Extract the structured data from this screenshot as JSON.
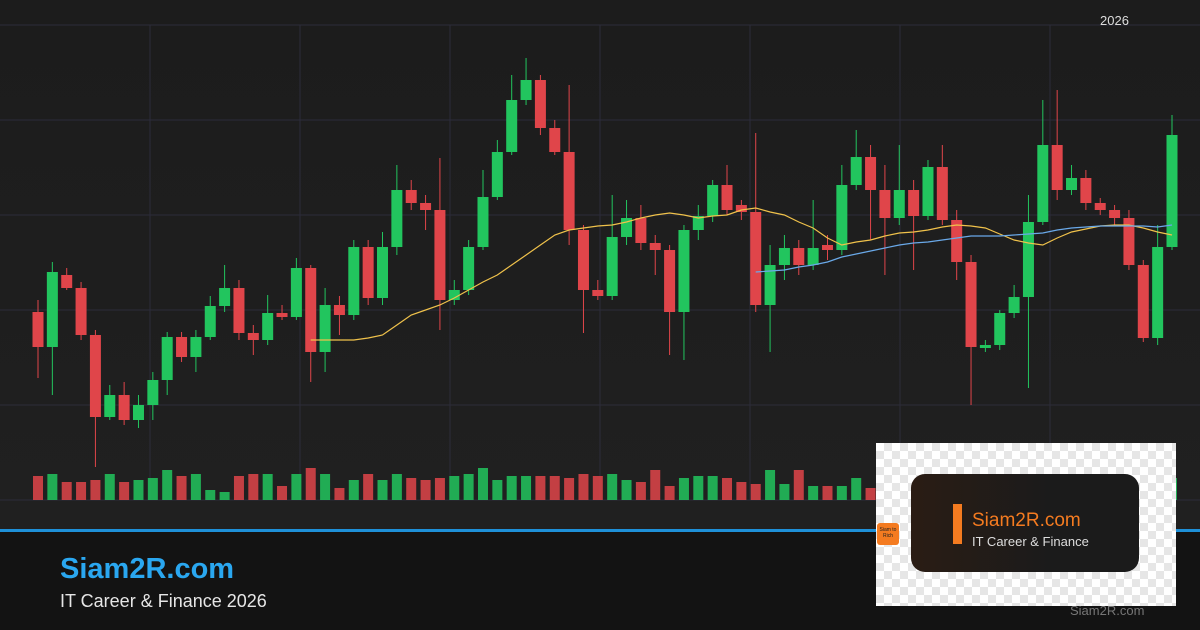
{
  "header": {
    "year": "2026"
  },
  "chart_data": {
    "type": "candlestick",
    "ylim": [
      0,
      500
    ],
    "up_color": "#22c55e",
    "down_color": "#e0454a",
    "open": [
      188,
      153,
      225,
      212,
      165,
      83,
      105,
      80,
      95,
      120,
      163,
      143,
      163,
      194,
      212,
      167,
      160,
      187,
      183,
      232,
      148,
      195,
      185,
      253,
      202,
      253,
      310,
      297,
      290,
      200,
      210,
      253,
      303,
      348,
      400,
      420,
      372,
      348,
      270,
      210,
      204,
      263,
      282,
      257,
      250,
      188,
      270,
      284,
      315,
      295,
      288,
      195,
      235,
      252,
      235,
      255,
      250,
      315,
      343,
      310,
      282,
      310,
      284,
      333,
      280,
      238,
      152,
      155,
      187,
      203,
      278,
      355,
      310,
      322,
      297,
      290,
      282,
      235,
      162,
      253
    ],
    "high": [
      200,
      238,
      232,
      218,
      170,
      115,
      118,
      105,
      128,
      168,
      168,
      170,
      204,
      235,
      220,
      175,
      205,
      195,
      242,
      235,
      212,
      204,
      260,
      260,
      268,
      335,
      320,
      305,
      342,
      220,
      260,
      330,
      360,
      425,
      442,
      425,
      380,
      415,
      275,
      220,
      305,
      300,
      295,
      265,
      255,
      275,
      295,
      320,
      335,
      300,
      367,
      255,
      265,
      260,
      300,
      265,
      335,
      370,
      355,
      335,
      355,
      320,
      340,
      355,
      290,
      245,
      160,
      190,
      215,
      305,
      400,
      410,
      335,
      330,
      302,
      295,
      290,
      240,
      275,
      385
    ],
    "low": [
      122,
      105,
      210,
      160,
      33,
      80,
      75,
      72,
      80,
      105,
      138,
      128,
      160,
      188,
      160,
      145,
      155,
      180,
      180,
      118,
      128,
      165,
      180,
      195,
      195,
      245,
      290,
      270,
      170,
      195,
      205,
      250,
      300,
      345,
      395,
      365,
      345,
      255,
      167,
      200,
      200,
      255,
      250,
      225,
      145,
      140,
      260,
      278,
      285,
      280,
      188,
      148,
      220,
      225,
      230,
      240,
      245,
      310,
      260,
      225,
      275,
      230,
      280,
      275,
      220,
      95,
      148,
      150,
      182,
      112,
      275,
      300,
      305,
      290,
      285,
      275,
      230,
      158,
      155,
      250
    ],
    "close": [
      153,
      228,
      212,
      165,
      83,
      105,
      80,
      95,
      120,
      163,
      143,
      163,
      194,
      212,
      167,
      160,
      187,
      183,
      232,
      148,
      195,
      185,
      253,
      202,
      253,
      310,
      297,
      290,
      200,
      210,
      253,
      303,
      348,
      400,
      420,
      372,
      348,
      270,
      210,
      204,
      263,
      282,
      257,
      250,
      188,
      270,
      284,
      315,
      290,
      288,
      195,
      235,
      252,
      235,
      252,
      250,
      315,
      343,
      310,
      282,
      310,
      284,
      333,
      280,
      238,
      153,
      155,
      187,
      203,
      278,
      355,
      310,
      322,
      297,
      290,
      282,
      235,
      162,
      253,
      365
    ],
    "volume": [
      24,
      26,
      18,
      18,
      20,
      26,
      18,
      20,
      22,
      30,
      24,
      26,
      10,
      8,
      24,
      26,
      26,
      14,
      26,
      32,
      26,
      12,
      20,
      26,
      20,
      26,
      22,
      20,
      22,
      24,
      26,
      32,
      20,
      24,
      24,
      24,
      24,
      22,
      26,
      24,
      26,
      20,
      18,
      30,
      14,
      22,
      24,
      24,
      22,
      18,
      16,
      30,
      16,
      30,
      14,
      14,
      14,
      22,
      12,
      24,
      20,
      22,
      20,
      18,
      22,
      20,
      24,
      18,
      20,
      22,
      24,
      20,
      22,
      18,
      20,
      22,
      20,
      24,
      18,
      22
    ],
    "volume_lim": [
      0,
      100
    ],
    "series": [
      {
        "color": "#f0c24b",
        "values": [
          null,
          null,
          null,
          null,
          null,
          null,
          null,
          null,
          null,
          null,
          null,
          null,
          null,
          null,
          null,
          null,
          null,
          null,
          null,
          160,
          160,
          160,
          160,
          162,
          165,
          175,
          185,
          190,
          195,
          202,
          210,
          218,
          225,
          235,
          245,
          255,
          265,
          270,
          272,
          274,
          275,
          278,
          282,
          285,
          287,
          285,
          282,
          284,
          285,
          290,
          292,
          288,
          285,
          278,
          272,
          262,
          255,
          258,
          260,
          264,
          267,
          268,
          270,
          273,
          275,
          274,
          272,
          266,
          260,
          257,
          255,
          262,
          268,
          271,
          274,
          275,
          275,
          272,
          268,
          265
        ]
      },
      {
        "color": "#6aa9e9",
        "values": [
          null,
          null,
          null,
          null,
          null,
          null,
          null,
          null,
          null,
          null,
          null,
          null,
          null,
          null,
          null,
          null,
          null,
          null,
          null,
          null,
          null,
          null,
          null,
          null,
          null,
          null,
          null,
          null,
          null,
          null,
          null,
          null,
          null,
          null,
          null,
          null,
          null,
          null,
          null,
          null,
          null,
          null,
          null,
          null,
          null,
          null,
          null,
          null,
          null,
          null,
          228,
          229,
          230,
          233,
          235,
          238,
          243,
          246,
          249,
          252,
          255,
          257,
          258,
          260,
          262,
          264,
          264,
          264,
          265,
          266,
          267,
          270,
          272,
          273,
          274,
          274,
          274,
          274,
          273,
          275
        ]
      }
    ]
  },
  "footer": {
    "title": "Siam2R.com",
    "subtitle": "IT Career & Finance 2026",
    "watermark": "Siam2R.com"
  },
  "logo": {
    "title": "Siam2R.com",
    "subtitle": "IT Career & Finance",
    "icon_text": "Siam to Rich"
  }
}
